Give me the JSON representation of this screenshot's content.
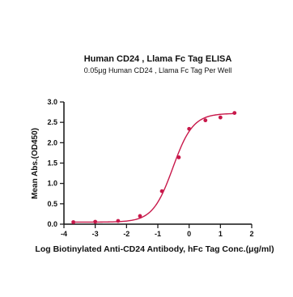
{
  "chart_data": {
    "type": "scatter",
    "title": "Human CD24 , Llama Fc Tag ELISA",
    "subtitle": "0.05μg Human CD24 , Llama Fc Tag Per Well",
    "xlabel": "Log Biotinylated Anti-CD24 Antibody, hFc Tag Conc.(μg/ml)",
    "ylabel": "Mean Abs.(OD450)",
    "xlim": [
      -4,
      2
    ],
    "ylim": [
      0,
      3.0
    ],
    "x_ticks": [
      "-4",
      "-3",
      "-2",
      "-1",
      "0",
      "1",
      "2"
    ],
    "y_ticks": [
      "0.0",
      "0.5",
      "1.0",
      "1.5",
      "2.0",
      "2.5",
      "3.0"
    ],
    "grid": false,
    "legend": "none",
    "colors": {
      "series": "#c8184a",
      "axes": "#111111"
    },
    "series": [
      {
        "points": [
          {
            "x": -3.7,
            "y": 0.05
          },
          {
            "x": -3.0,
            "y": 0.06
          },
          {
            "x": -2.27,
            "y": 0.08
          },
          {
            "x": -1.57,
            "y": 0.2
          },
          {
            "x": -0.87,
            "y": 0.81
          },
          {
            "x": -0.33,
            "y": 1.64
          },
          {
            "x": 0.0,
            "y": 2.34
          },
          {
            "x": 0.52,
            "y": 2.55
          },
          {
            "x": 1.0,
            "y": 2.62
          },
          {
            "x": 1.45,
            "y": 2.73
          }
        ],
        "fit": {
          "model": "4PL",
          "bottom": 0.05,
          "top": 2.72,
          "logEC50": -0.52,
          "hill": 1.35,
          "x_range": [
            -3.75,
            1.5
          ]
        }
      }
    ]
  }
}
